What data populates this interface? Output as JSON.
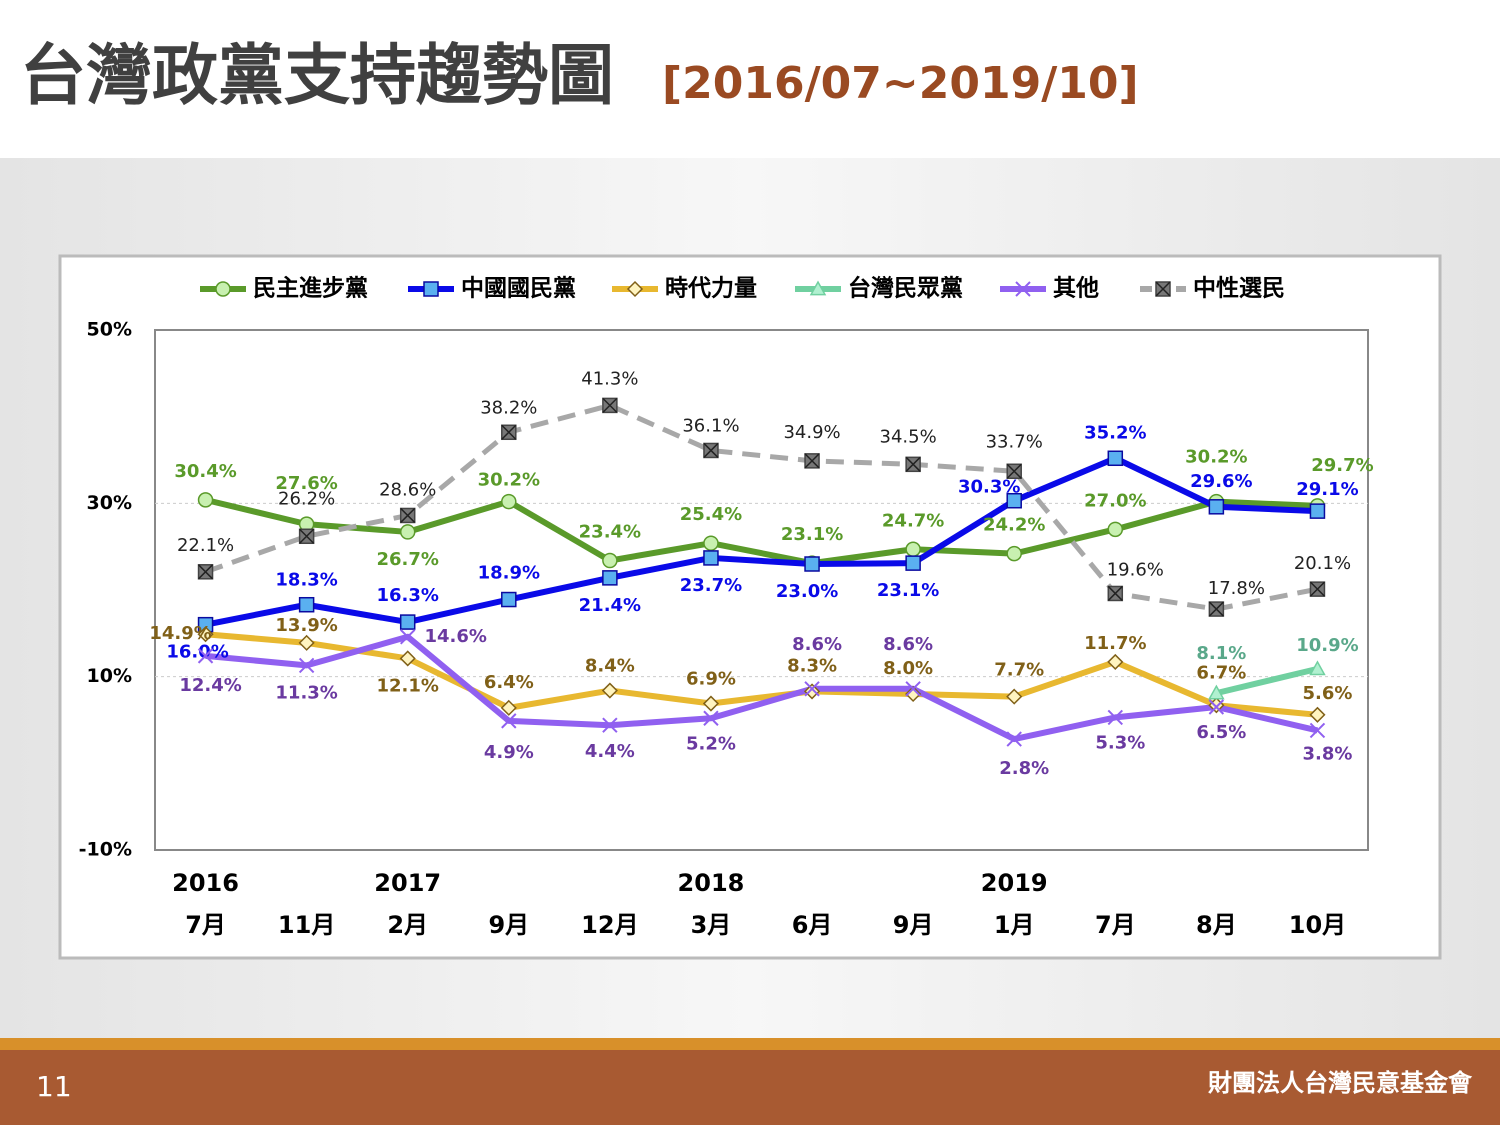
{
  "slide": {
    "title": "台灣政黨支持趨勢圖",
    "subtitle": "[2016/07~2019/10]",
    "page": "11",
    "org": "財團法人台灣民意基金會"
  },
  "chart_data": {
    "type": "line",
    "categories": [
      "7月",
      "11月",
      "2月",
      "9月",
      "12月",
      "3月",
      "6月",
      "9月",
      "1月",
      "7月",
      "8月",
      "10月"
    ],
    "years": [
      "2016",
      null,
      "2017",
      null,
      null,
      "2018",
      null,
      null,
      "2019",
      null,
      null,
      null
    ],
    "ylim": [
      -10,
      50
    ],
    "yticks": [
      {
        "value": -10,
        "label": "-10%"
      },
      {
        "value": 10,
        "label": "10%"
      },
      {
        "value": 30,
        "label": "30%"
      },
      {
        "value": 50,
        "label": "50%"
      }
    ],
    "grid": true,
    "series": [
      {
        "name": "民主進步黨",
        "color": "#5a9a2a",
        "marker": "circle",
        "values": [
          30.4,
          27.6,
          26.7,
          30.2,
          23.4,
          25.4,
          23.1,
          24.7,
          24.2,
          27.0,
          30.2,
          29.7
        ],
        "value_labels": [
          "30.4%",
          "27.6%",
          "26.7%",
          "30.2%",
          "23.4%",
          "25.4%",
          "23.1%",
          "24.7%",
          "24.2%",
          "27.0%",
          "30.2%",
          "29.7%"
        ]
      },
      {
        "name": "中國國民黨",
        "color": "#0a0ae8",
        "marker": "square",
        "values": [
          16.0,
          18.3,
          16.3,
          18.9,
          21.4,
          23.7,
          23.0,
          23.1,
          30.3,
          35.2,
          29.6,
          29.1
        ],
        "value_labels": [
          "16.0%",
          "18.3%",
          "16.3%",
          "18.9%",
          "21.4%",
          "23.7%",
          "23.0%",
          "23.1%",
          "30.3%",
          "35.2%",
          "29.6%",
          "29.1%"
        ]
      },
      {
        "name": "時代力量",
        "color": "#e8b830",
        "marker": "diamond",
        "values": [
          14.9,
          13.9,
          12.1,
          6.4,
          8.4,
          6.9,
          8.3,
          8.0,
          7.7,
          11.7,
          6.7,
          5.6
        ],
        "value_labels": [
          "14.9%",
          "13.9%",
          "12.1%",
          "6.4%",
          "8.4%",
          "6.9%",
          "8.3%",
          "8.0%",
          "7.7%",
          "11.7%",
          "6.7%",
          "5.6%"
        ]
      },
      {
        "name": "台灣民眾黨",
        "color": "#70d0a0",
        "marker": "triangle",
        "values": [
          null,
          null,
          null,
          null,
          null,
          null,
          null,
          null,
          null,
          null,
          8.1,
          10.9
        ],
        "value_labels": [
          null,
          null,
          null,
          null,
          null,
          null,
          null,
          null,
          null,
          null,
          "8.1%",
          "10.9%"
        ]
      },
      {
        "name": "其他",
        "color": "#9060f0",
        "marker": "x",
        "values": [
          12.4,
          11.3,
          14.6,
          4.9,
          4.4,
          5.2,
          8.6,
          8.6,
          2.8,
          5.3,
          6.5,
          3.8
        ],
        "value_labels": [
          "12.4%",
          "11.3%",
          "14.6%",
          "4.9%",
          "4.4%",
          "5.2%",
          "8.6%",
          "8.6%",
          "2.8%",
          "5.3%",
          "6.5%",
          "3.8%"
        ]
      },
      {
        "name": "中性選民",
        "color": "#a8a8a8",
        "marker": "xsquare",
        "dashed": true,
        "values": [
          22.1,
          26.2,
          28.6,
          38.2,
          41.3,
          36.1,
          34.9,
          34.5,
          33.7,
          19.6,
          17.8,
          20.1
        ],
        "value_labels": [
          "22.1%",
          "26.2%",
          "28.6%",
          "38.2%",
          "41.3%",
          "36.1%",
          "34.9%",
          "34.5%",
          "33.7%",
          "19.6%",
          "17.8%",
          "20.1%"
        ]
      }
    ]
  }
}
